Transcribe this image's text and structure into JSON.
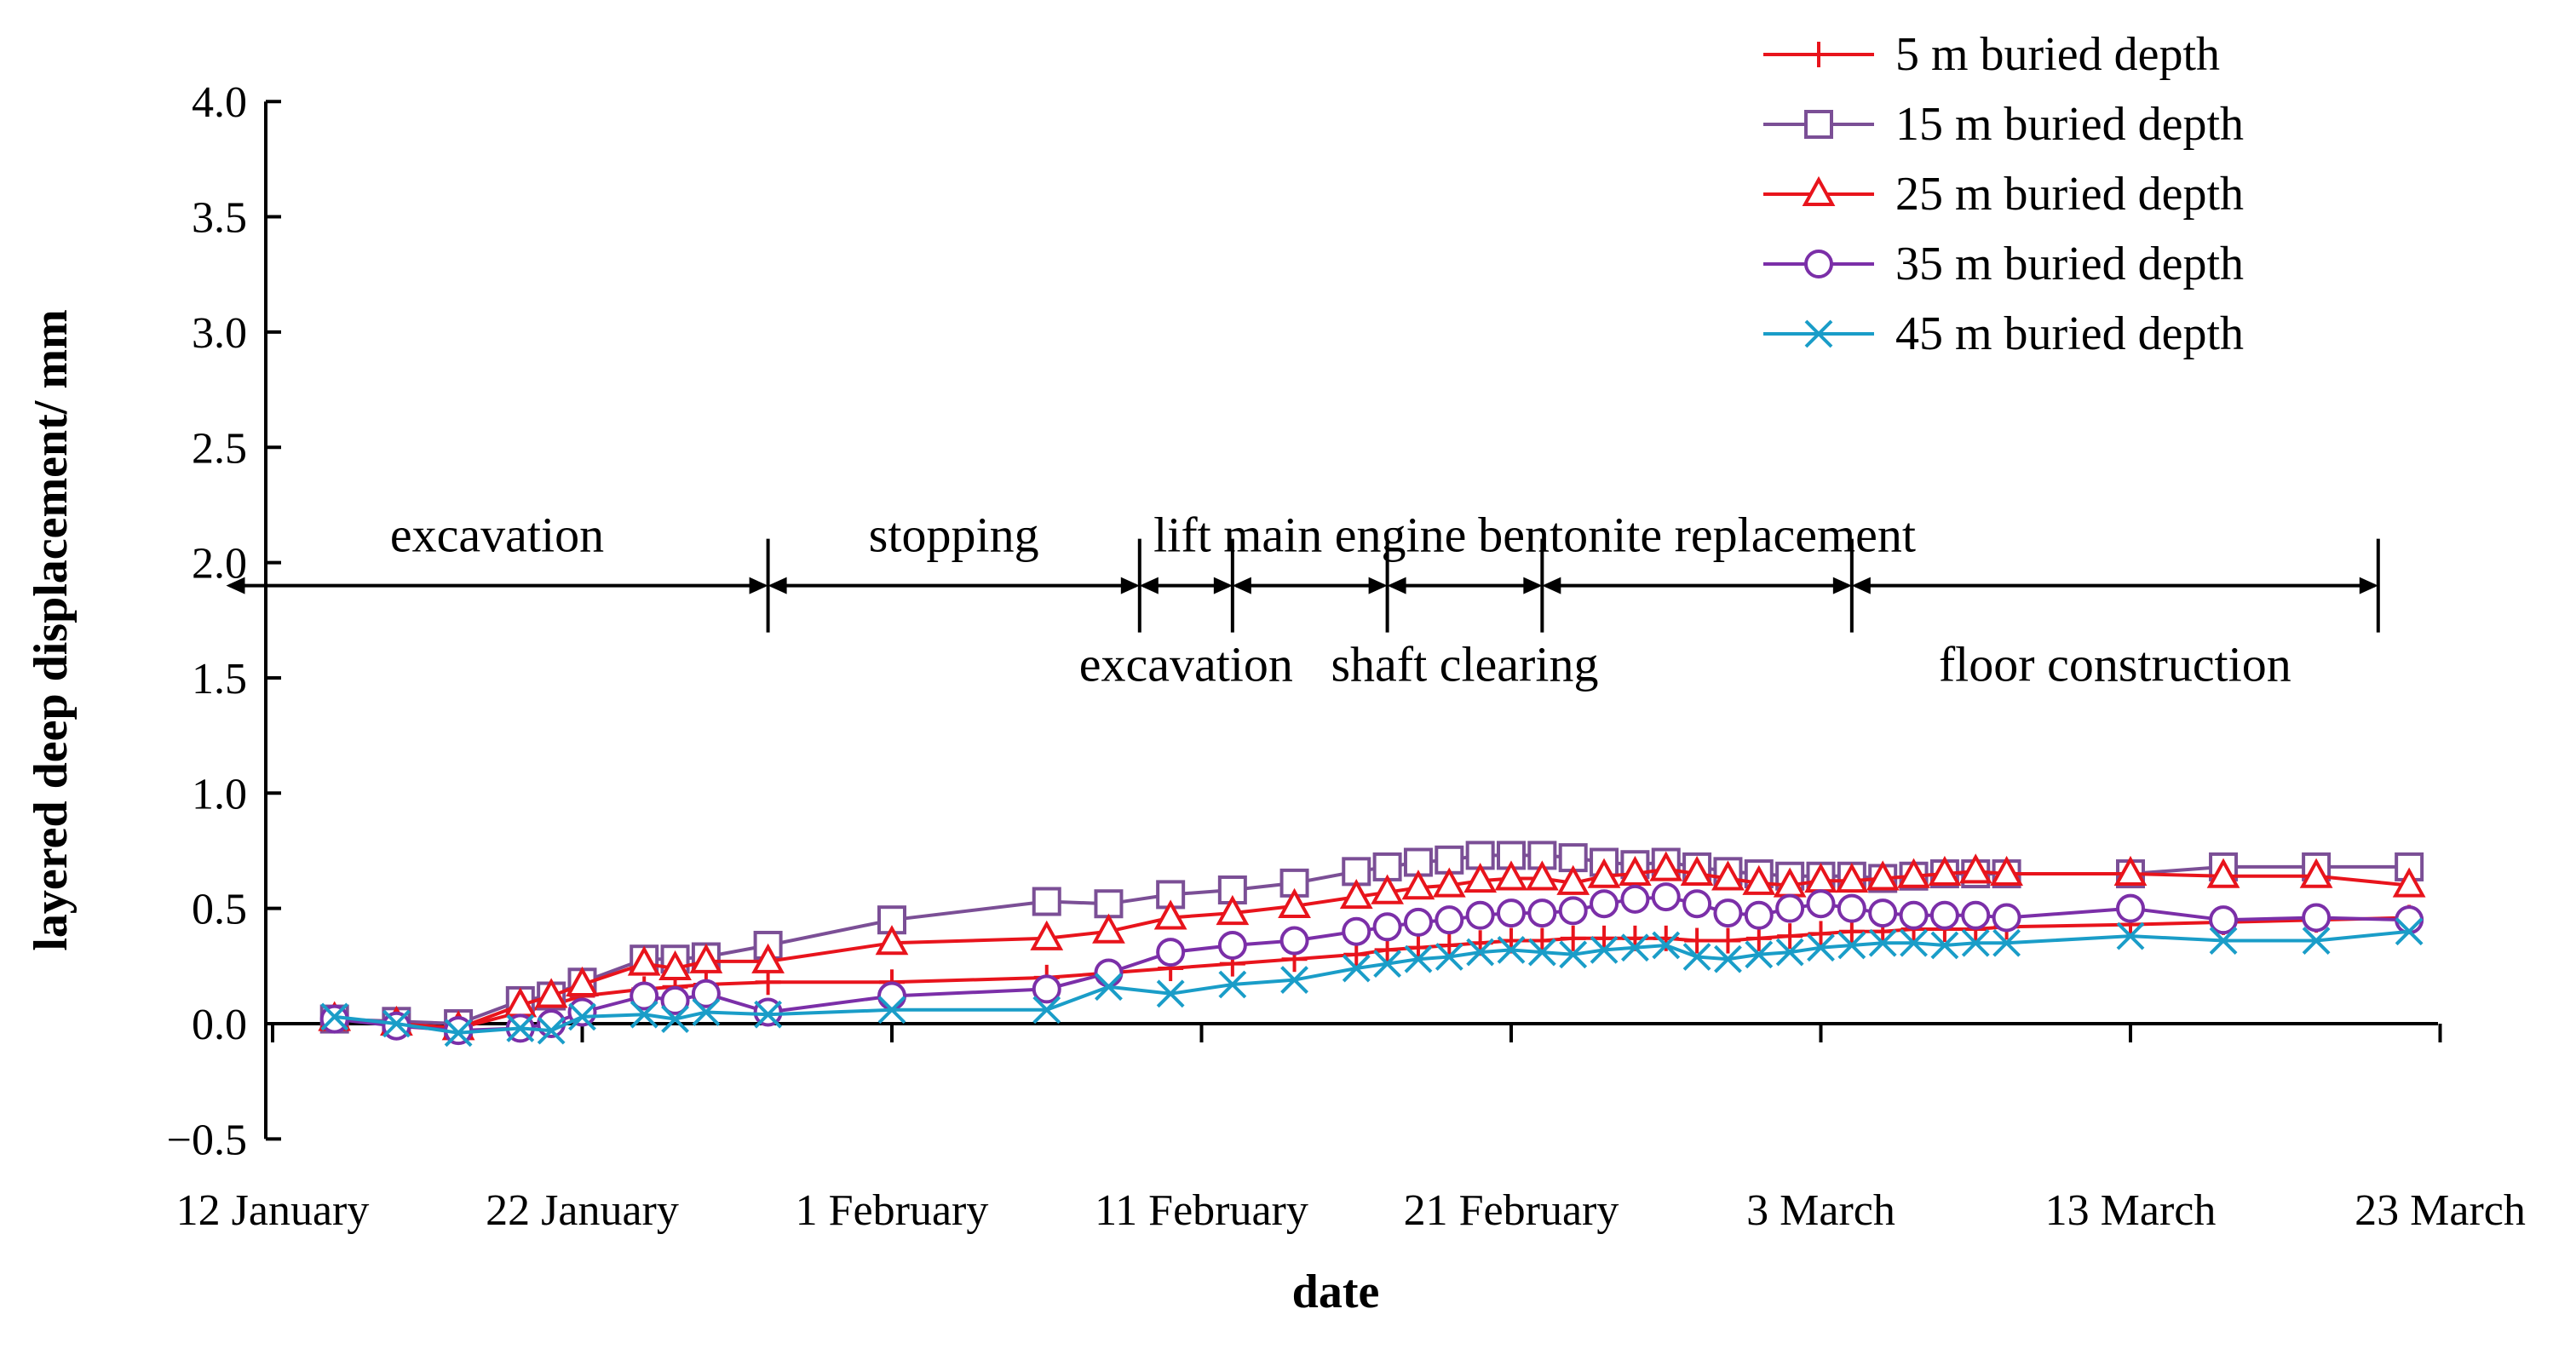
{
  "chart_data": {
    "type": "line",
    "title": "",
    "xlabel": "date",
    "ylabel": "layered deep displacement/ mm",
    "x_unit": "days since 12 January",
    "xlim": [
      0,
      70
    ],
    "ylim": [
      -0.5,
      4.0
    ],
    "y_ticks": [
      -0.5,
      0.0,
      0.5,
      1.0,
      1.5,
      2.0,
      2.5,
      3.0,
      3.5,
      4.0
    ],
    "y_tick_labels": [
      "−0.5",
      "0.0",
      "0.5",
      "1.0",
      "1.5",
      "2.0",
      "2.5",
      "3.0",
      "3.5",
      "4.0"
    ],
    "x_ticks": [
      0,
      10,
      20,
      30,
      40,
      50,
      60,
      70
    ],
    "x_tick_labels": [
      "12 January",
      "22 January",
      "1 February",
      "11 February",
      "21 February",
      "3 March",
      "13 March",
      "23 March"
    ],
    "grid": false,
    "legend_position": "top-right",
    "series": [
      {
        "name": "5 m buried depth",
        "color": "#e8141c",
        "marker": "plus",
        "x": [
          2,
          4,
          6,
          8,
          9,
          10,
          12,
          13,
          14,
          16,
          20,
          25,
          27,
          29,
          31,
          33,
          35,
          36,
          37,
          38,
          39,
          40,
          41,
          42,
          43,
          44,
          45,
          46,
          47,
          48,
          49,
          50,
          51,
          52,
          53,
          54,
          55,
          56,
          60,
          63,
          66,
          69
        ],
        "values": [
          0.02,
          0.0,
          -0.02,
          0.05,
          0.08,
          0.12,
          0.15,
          0.16,
          0.17,
          0.18,
          0.18,
          0.2,
          0.22,
          0.24,
          0.26,
          0.28,
          0.3,
          0.32,
          0.33,
          0.34,
          0.35,
          0.36,
          0.36,
          0.37,
          0.37,
          0.37,
          0.37,
          0.36,
          0.36,
          0.37,
          0.38,
          0.39,
          0.4,
          0.4,
          0.41,
          0.41,
          0.41,
          0.42,
          0.43,
          0.44,
          0.45,
          0.46
        ]
      },
      {
        "name": "15 m buried depth",
        "color": "#7b4f96",
        "marker": "square",
        "x": [
          2,
          4,
          6,
          8,
          9,
          10,
          12,
          13,
          14,
          16,
          20,
          25,
          27,
          29,
          31,
          33,
          35,
          36,
          37,
          38,
          39,
          40,
          41,
          42,
          43,
          44,
          45,
          46,
          47,
          48,
          49,
          50,
          51,
          52,
          53,
          54,
          55,
          56,
          60,
          63,
          66,
          69
        ],
        "values": [
          0.02,
          0.01,
          0.0,
          0.1,
          0.12,
          0.18,
          0.28,
          0.28,
          0.29,
          0.34,
          0.45,
          0.53,
          0.52,
          0.56,
          0.58,
          0.61,
          0.66,
          0.68,
          0.7,
          0.71,
          0.73,
          0.73,
          0.73,
          0.72,
          0.7,
          0.69,
          0.7,
          0.68,
          0.66,
          0.65,
          0.64,
          0.64,
          0.64,
          0.63,
          0.64,
          0.65,
          0.65,
          0.65,
          0.65,
          0.68,
          0.68,
          0.68
        ]
      },
      {
        "name": "25 m buried depth",
        "color": "#e8141c",
        "marker": "triangle",
        "x": [
          2,
          4,
          6,
          8,
          9,
          10,
          12,
          13,
          14,
          16,
          20,
          25,
          27,
          29,
          31,
          33,
          35,
          36,
          37,
          38,
          39,
          40,
          41,
          42,
          43,
          44,
          45,
          46,
          47,
          48,
          49,
          50,
          51,
          52,
          53,
          54,
          55,
          56,
          60,
          63,
          66,
          69
        ],
        "values": [
          0.02,
          0.0,
          -0.02,
          0.08,
          0.12,
          0.17,
          0.26,
          0.24,
          0.27,
          0.27,
          0.35,
          0.37,
          0.4,
          0.46,
          0.48,
          0.51,
          0.55,
          0.57,
          0.59,
          0.6,
          0.62,
          0.63,
          0.63,
          0.61,
          0.64,
          0.65,
          0.67,
          0.65,
          0.63,
          0.61,
          0.6,
          0.62,
          0.62,
          0.63,
          0.64,
          0.65,
          0.66,
          0.65,
          0.65,
          0.64,
          0.64,
          0.6
        ]
      },
      {
        "name": "35 m buried depth",
        "color": "#7b2fa8",
        "marker": "circle",
        "x": [
          2,
          4,
          6,
          8,
          9,
          10,
          12,
          13,
          14,
          16,
          20,
          25,
          27,
          29,
          31,
          33,
          35,
          36,
          37,
          38,
          39,
          40,
          41,
          42,
          43,
          44,
          45,
          46,
          47,
          48,
          49,
          50,
          51,
          52,
          53,
          54,
          55,
          56,
          60,
          63,
          66,
          69
        ],
        "values": [
          0.02,
          -0.01,
          -0.03,
          -0.02,
          0.0,
          0.05,
          0.12,
          0.1,
          0.13,
          0.05,
          0.12,
          0.15,
          0.22,
          0.31,
          0.34,
          0.36,
          0.4,
          0.42,
          0.44,
          0.45,
          0.47,
          0.48,
          0.48,
          0.49,
          0.52,
          0.54,
          0.55,
          0.52,
          0.48,
          0.47,
          0.5,
          0.52,
          0.5,
          0.48,
          0.47,
          0.47,
          0.47,
          0.46,
          0.5,
          0.45,
          0.46,
          0.45
        ]
      },
      {
        "name": "45 m buried depth",
        "color": "#1a9dc8",
        "marker": "x",
        "x": [
          2,
          4,
          6,
          8,
          9,
          10,
          12,
          13,
          14,
          16,
          20,
          25,
          27,
          29,
          31,
          33,
          35,
          36,
          37,
          38,
          39,
          40,
          41,
          42,
          43,
          44,
          45,
          46,
          47,
          48,
          49,
          50,
          51,
          52,
          53,
          54,
          55,
          56,
          60,
          63,
          66,
          69
        ],
        "values": [
          0.03,
          0.0,
          -0.04,
          -0.02,
          -0.03,
          0.03,
          0.04,
          0.02,
          0.05,
          0.04,
          0.06,
          0.06,
          0.16,
          0.13,
          0.17,
          0.19,
          0.24,
          0.26,
          0.28,
          0.29,
          0.31,
          0.32,
          0.31,
          0.3,
          0.32,
          0.33,
          0.34,
          0.29,
          0.28,
          0.3,
          0.31,
          0.33,
          0.34,
          0.35,
          0.35,
          0.34,
          0.35,
          0.35,
          0.38,
          0.36,
          0.36,
          0.4
        ]
      }
    ],
    "phases": [
      {
        "label": "excavation",
        "start": -1.5,
        "end": 16,
        "label_position": "above"
      },
      {
        "label": "stopping",
        "start": 16,
        "end": 28,
        "label_position": "above"
      },
      {
        "label": "excavation",
        "start": 28,
        "end": 31,
        "label_position": "below"
      },
      {
        "label": "lift main engine",
        "start": 31,
        "end": 36,
        "label_position": "above"
      },
      {
        "label": "shaft clearing",
        "start": 36,
        "end": 41,
        "label_position": "below"
      },
      {
        "label": "bentonite replacement",
        "start": 41,
        "end": 51,
        "label_position": "above"
      },
      {
        "label": "floor construction",
        "start": 51,
        "end": 68,
        "label_position": "below"
      }
    ],
    "phase_arrow_level": 1.9
  }
}
